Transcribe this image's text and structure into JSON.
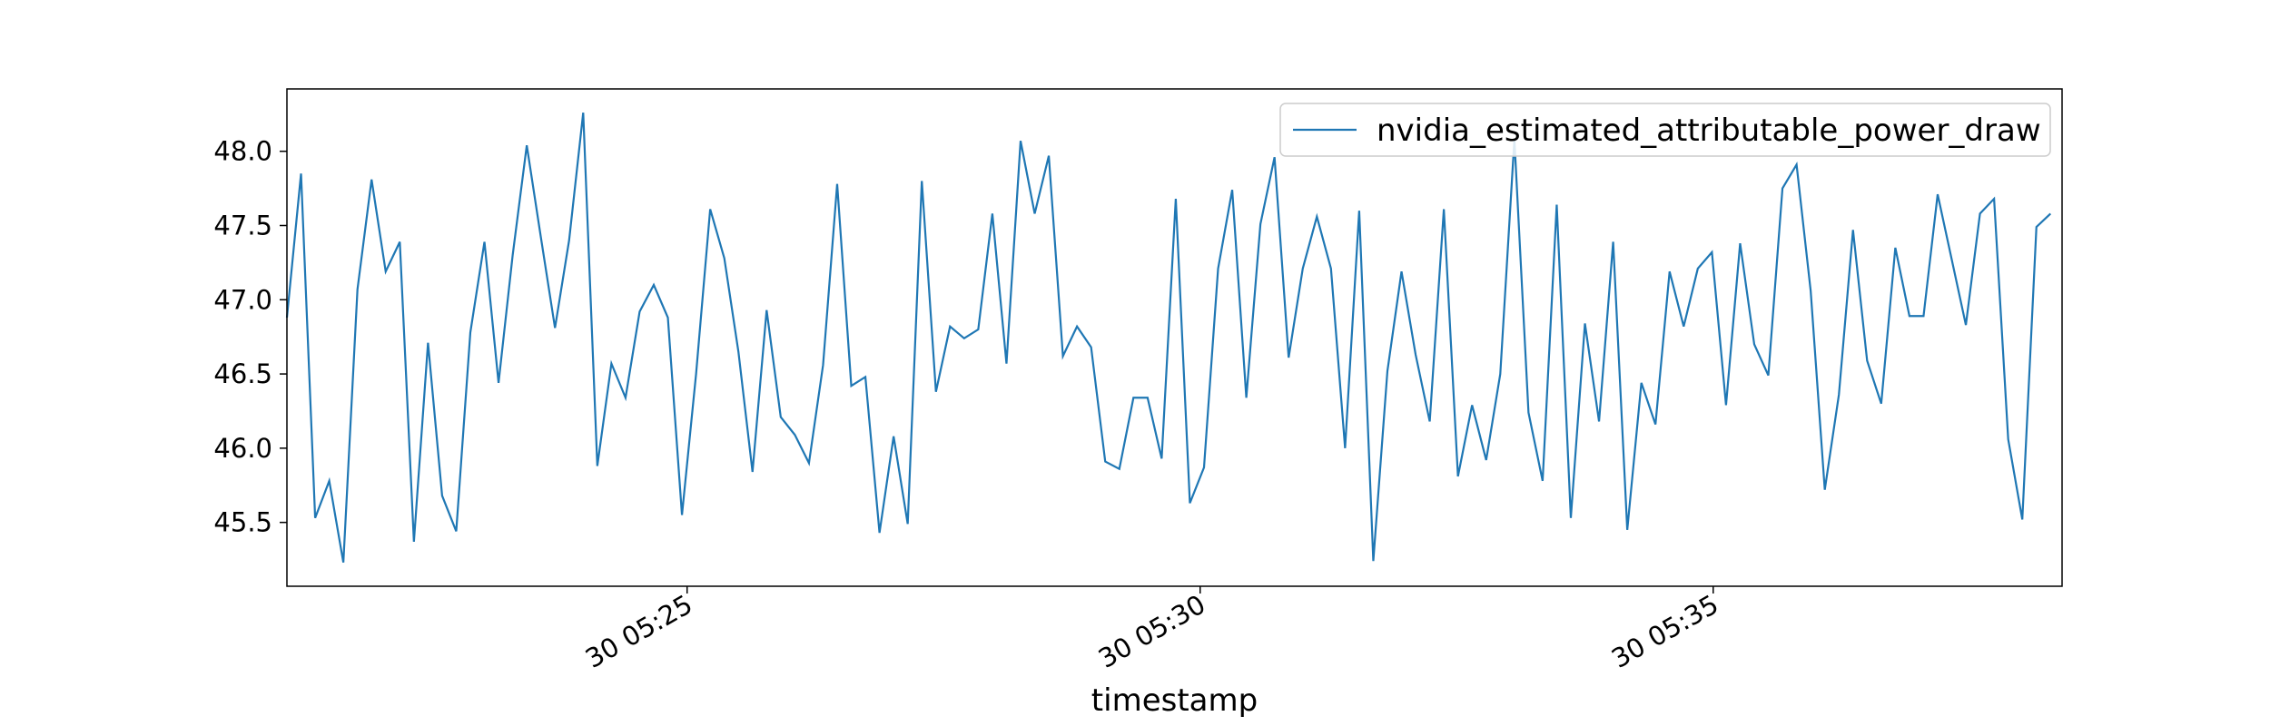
{
  "chart_data": {
    "type": "line",
    "title": "",
    "xlabel": "timestamp",
    "ylabel": "",
    "grid": false,
    "legend_placement": "top-right",
    "line_color": "#1f77b4",
    "x_units": "minutes after 05:20 on day 30 (timestamps every 7.5 s)",
    "xlim": [
      1.1,
      18.4
    ],
    "ylim": [
      45.07,
      48.42
    ],
    "x_ticks": [
      {
        "value": 5,
        "label": "30 05:25"
      },
      {
        "value": 10,
        "label": "30 05:30"
      },
      {
        "value": 15,
        "label": "30 05:35"
      }
    ],
    "y_ticks": [
      {
        "value": 45.5,
        "label": "45.5"
      },
      {
        "value": 46.0,
        "label": "46.0"
      },
      {
        "value": 46.5,
        "label": "46.5"
      },
      {
        "value": 47.0,
        "label": "47.0"
      },
      {
        "value": 47.5,
        "label": "47.5"
      },
      {
        "value": 48.0,
        "label": "48.0"
      }
    ],
    "x_start": 1.1,
    "x_step": 0.1375,
    "series": [
      {
        "name": "nvidia_estimated_attributable_power_draw",
        "values": [
          46.88,
          47.85,
          45.53,
          45.78,
          45.23,
          47.07,
          47.81,
          47.19,
          47.39,
          45.37,
          46.71,
          45.68,
          45.44,
          46.78,
          47.39,
          46.44,
          47.3,
          48.04,
          47.42,
          46.81,
          47.4,
          48.26,
          45.88,
          46.57,
          46.34,
          46.92,
          47.1,
          46.88,
          45.55,
          46.5,
          47.61,
          47.28,
          46.65,
          45.84,
          46.93,
          46.21,
          46.09,
          45.9,
          46.56,
          47.78,
          46.42,
          46.48,
          45.43,
          46.08,
          45.49,
          47.8,
          46.38,
          46.82,
          46.74,
          46.8,
          47.58,
          46.57,
          48.07,
          47.58,
          47.97,
          46.62,
          46.82,
          46.68,
          45.91,
          45.86,
          46.34,
          46.34,
          45.93,
          47.68,
          45.63,
          45.87,
          47.21,
          47.74,
          46.34,
          47.51,
          47.96,
          46.61,
          47.21,
          47.56,
          47.21,
          46.0,
          47.6,
          45.24,
          46.52,
          47.19,
          46.63,
          46.18,
          47.61,
          45.81,
          46.29,
          45.92,
          46.5,
          48.08,
          46.24,
          45.78,
          47.64,
          45.53,
          46.84,
          46.18,
          47.39,
          45.45,
          46.44,
          46.16,
          47.19,
          46.82,
          47.21,
          47.32,
          46.29,
          47.38,
          46.7,
          46.49,
          47.75,
          47.91,
          47.06,
          45.72,
          46.36,
          47.47,
          46.59,
          46.3,
          47.35,
          46.89,
          46.89,
          47.71,
          47.27,
          46.83,
          47.58,
          47.68,
          46.06,
          45.52,
          47.49,
          47.58
        ]
      }
    ]
  }
}
